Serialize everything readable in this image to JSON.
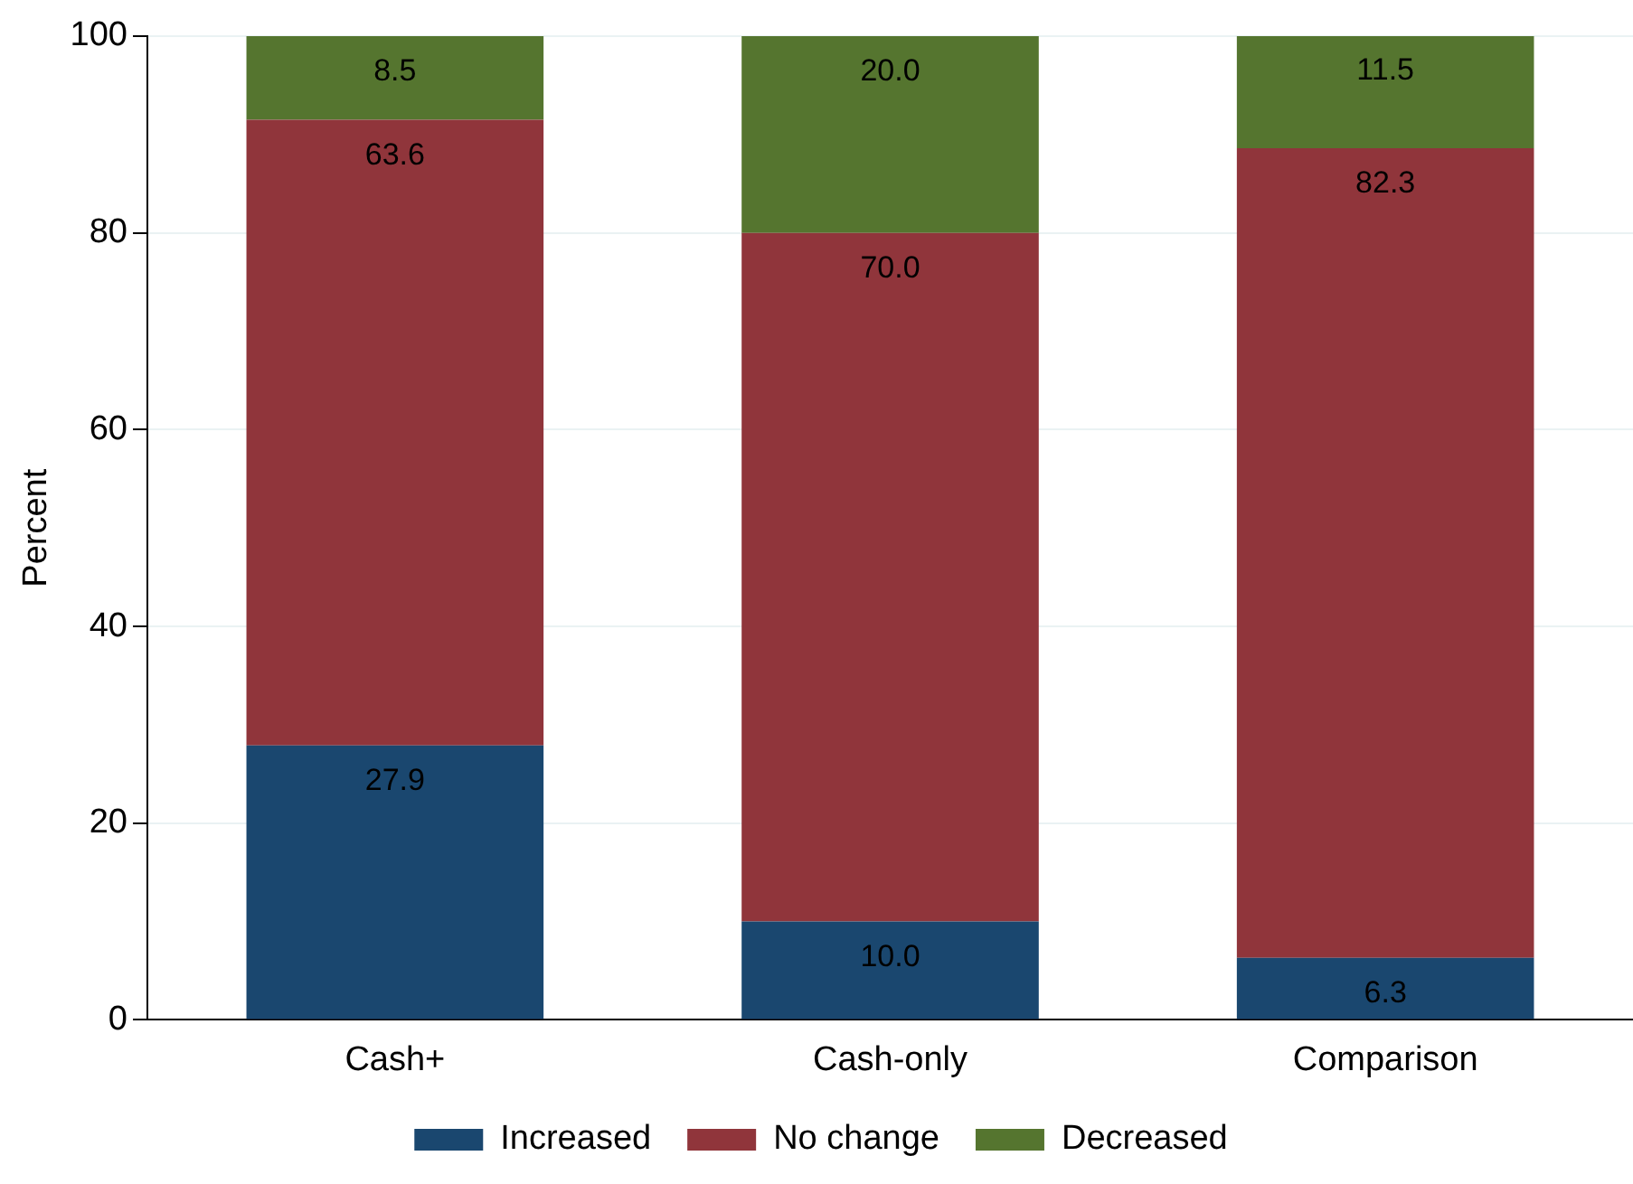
{
  "chart_data": {
    "type": "bar",
    "ylabel": "Percent",
    "categories": [
      "Cash+",
      "Cash-only",
      "Comparison"
    ],
    "series": [
      {
        "name": "Increased",
        "color": "#1a476f",
        "values": [
          27.9,
          10.0,
          6.3
        ],
        "value_labels": [
          "27.9",
          "10.0",
          "6.3"
        ]
      },
      {
        "name": "No change",
        "color": "#90353b",
        "values": [
          63.6,
          70.0,
          82.3
        ],
        "value_labels": [
          "63.6",
          "70.0",
          "82.3"
        ]
      },
      {
        "name": "Decreased",
        "color": "#55752f",
        "values": [
          8.5,
          20.0,
          11.5
        ],
        "value_labels": [
          "8.5",
          "20.0",
          "11.5"
        ]
      }
    ],
    "stacked": true,
    "ylim": [
      0,
      100
    ],
    "yticks": [
      0,
      20,
      40,
      60,
      80,
      100
    ],
    "grid": "y",
    "legend": "bottom"
  }
}
